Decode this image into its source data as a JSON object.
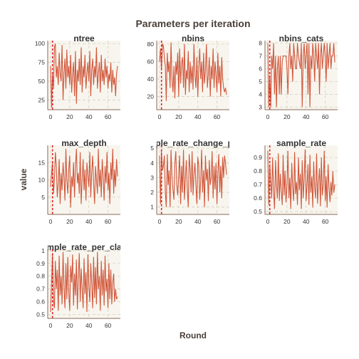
{
  "chart_data": {
    "type": "line",
    "title": "Parameters per iteration",
    "xlabel": "Round",
    "ylabel": "value",
    "xlim": [
      -3,
      73
    ],
    "x_ticks": [
      0,
      20,
      40,
      60
    ],
    "marker_x": 2,
    "colors": {
      "line": "#d1573b",
      "marker": "#e0222a",
      "panel": "#f7f5ee",
      "grid": "#d8d2c0",
      "axis": "#8a6a5a"
    },
    "panels": [
      {
        "name": "ntree",
        "ylim": [
          12,
          104
        ],
        "yticks": [
          25,
          50,
          75,
          100
        ],
        "values": [
          70,
          15,
          60,
          40,
          95,
          100,
          55,
          70,
          45,
          88,
          60,
          50,
          98,
          25,
          60,
          80,
          40,
          92,
          55,
          70,
          45,
          85,
          35,
          60,
          75,
          30,
          90,
          20,
          65,
          50,
          80,
          45,
          95,
          35,
          70,
          55,
          85,
          40,
          60,
          75,
          50,
          90,
          30,
          65,
          80,
          45,
          70,
          55,
          95,
          40,
          60,
          75,
          35,
          85,
          50,
          65,
          45,
          80,
          55,
          70,
          40,
          60,
          50,
          75,
          35,
          65,
          45,
          55,
          30,
          60,
          70
        ]
      },
      {
        "name": "nbins",
        "ylim": [
          5,
          84
        ],
        "yticks": [
          20,
          40,
          60,
          80
        ],
        "values": [
          60,
          75,
          50,
          80,
          78,
          65,
          55,
          15,
          70,
          48,
          60,
          30,
          82,
          40,
          25,
          55,
          18,
          60,
          45,
          70,
          20,
          75,
          35,
          58,
          65,
          30,
          80,
          22,
          50,
          40,
          72,
          25,
          60,
          35,
          55,
          28,
          80,
          45,
          30,
          65,
          20,
          55,
          75,
          40,
          60,
          25,
          70,
          35,
          50,
          80,
          30,
          45,
          65,
          20,
          55,
          40,
          75,
          30,
          60,
          45,
          25,
          70,
          35,
          55,
          20,
          65,
          40,
          30,
          25,
          30,
          22
        ]
      },
      {
        "name": "nbins_cats",
        "ylim": [
          2.8,
          8.2
        ],
        "yticks": [
          3,
          4,
          5,
          6,
          7,
          8
        ],
        "values": [
          8,
          3,
          5.5,
          3,
          7,
          6,
          8,
          4,
          7,
          3,
          6,
          7,
          4,
          7,
          4,
          6.5,
          7,
          7,
          7,
          7,
          6,
          4,
          7,
          8,
          6,
          7,
          5,
          8,
          7,
          6,
          6,
          8,
          7,
          6.5,
          6,
          8,
          3,
          7,
          8,
          6,
          7,
          8,
          4,
          8,
          3,
          7,
          6,
          8,
          7,
          5,
          8,
          7,
          6,
          8,
          4,
          7,
          8,
          6,
          7,
          8,
          7,
          5,
          8,
          6,
          7,
          8,
          6,
          7,
          7,
          8,
          6.5
        ]
      },
      {
        "name": "max_depth",
        "ylim": [
          0,
          20
        ],
        "yticks": [
          5,
          10,
          15
        ],
        "values": [
          8,
          12,
          15,
          6,
          10,
          18,
          14,
          5,
          9,
          16,
          3,
          12,
          7,
          15,
          11,
          4,
          19,
          10,
          6,
          13,
          17,
          2,
          11,
          8,
          15,
          5,
          14,
          19,
          9,
          12,
          6,
          18,
          3,
          10,
          16,
          7,
          13,
          4,
          15,
          11,
          8,
          18,
          5,
          12,
          17,
          9,
          3,
          14,
          10,
          6,
          19,
          8,
          13,
          5,
          16,
          11,
          4,
          14,
          9,
          18,
          7,
          12,
          3,
          15,
          10,
          19,
          6,
          13,
          8,
          16,
          11
        ]
      },
      {
        "name": "col_sample_rate_change_per_level",
        "ylim": [
          0.5,
          5.2
        ],
        "yticks": [
          1,
          2,
          3,
          4,
          5
        ],
        "values": [
          4.5,
          1.2,
          4.8,
          3.5,
          3.8,
          4.5,
          2.0,
          1.0,
          4.6,
          2.5,
          3.5,
          1.0,
          4.9,
          3.0,
          2.2,
          1.5,
          4.0,
          4.8,
          2.5,
          1.8,
          3.2,
          4.5,
          1.2,
          3.8,
          2.0,
          4.9,
          1.5,
          3.0,
          4.2,
          2.2,
          1.0,
          4.6,
          3.5,
          2.0,
          4.8,
          1.8,
          3.2,
          4.0,
          2.5,
          1.2,
          4.4,
          3.8,
          1.5,
          2.8,
          4.9,
          2.0,
          3.5,
          1.0,
          4.5,
          2.8,
          3.6,
          1.4,
          4.2,
          2.5,
          3.0,
          4.8,
          1.6,
          3.8,
          2.2,
          4.0,
          1.2,
          3.4,
          4.6,
          2.0,
          3.8,
          1.6,
          4.4,
          3.0,
          4.5,
          4.0,
          3.2
        ]
      },
      {
        "name": "sample_rate",
        "ylim": [
          0.48,
          0.99
        ],
        "yticks": [
          0.5,
          0.6,
          0.7,
          0.8,
          0.9
        ],
        "values": [
          0.95,
          0.55,
          0.85,
          0.72,
          0.6,
          0.9,
          0.65,
          0.52,
          0.88,
          0.7,
          0.6,
          0.93,
          0.58,
          0.78,
          0.66,
          0.55,
          0.92,
          0.62,
          0.8,
          0.57,
          0.7,
          0.95,
          0.6,
          0.75,
          0.52,
          0.86,
          0.68,
          0.58,
          0.94,
          0.63,
          0.72,
          0.55,
          0.9,
          0.66,
          0.78,
          0.52,
          0.88,
          0.6,
          0.74,
          0.96,
          0.58,
          0.7,
          0.85,
          0.55,
          0.92,
          0.64,
          0.76,
          0.53,
          0.87,
          0.67,
          0.6,
          0.93,
          0.56,
          0.72,
          0.82,
          0.54,
          0.9,
          0.62,
          0.7,
          0.95,
          0.58,
          0.76,
          0.53,
          0.85,
          0.68,
          0.57,
          0.72,
          0.62,
          0.8,
          0.64,
          0.7
        ]
      },
      {
        "name": "sample_rate_per_class",
        "ylim": [
          0.47,
          1.01
        ],
        "yticks": [
          0.5,
          0.6,
          0.7,
          0.8,
          0.9,
          1.0
        ],
        "values": [
          0.52,
          0.75,
          0.98,
          0.6,
          0.55,
          0.92,
          0.7,
          0.85,
          0.53,
          0.96,
          0.65,
          0.8,
          0.58,
          0.99,
          0.72,
          0.55,
          0.9,
          0.62,
          0.95,
          0.68,
          0.53,
          0.88,
          0.75,
          0.97,
          0.57,
          0.82,
          0.65,
          0.93,
          0.54,
          0.78,
          0.98,
          0.6,
          0.86,
          0.7,
          0.55,
          0.94,
          0.66,
          0.83,
          0.52,
          0.97,
          0.72,
          0.6,
          0.9,
          0.75,
          0.55,
          0.95,
          0.63,
          0.87,
          0.58,
          0.99,
          0.7,
          0.8,
          0.53,
          0.92,
          0.65,
          0.85,
          0.57,
          0.96,
          0.68,
          0.78,
          0.55,
          0.9,
          0.62,
          0.85,
          0.58,
          0.75,
          0.82,
          0.6,
          0.7,
          0.62,
          0.64
        ]
      }
    ]
  }
}
